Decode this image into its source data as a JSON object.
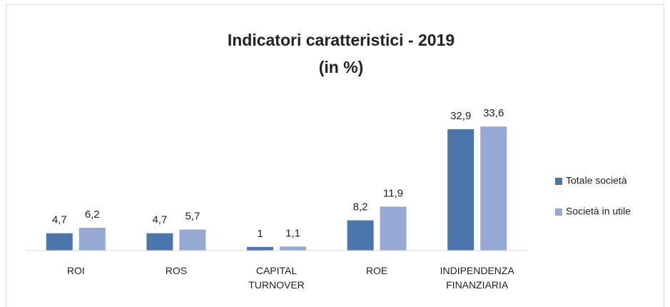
{
  "chart_data": {
    "type": "bar",
    "title": "Indicatori caratteristici - 2019",
    "subtitle": "(in %)",
    "categories": [
      "ROI",
      "ROS",
      "CAPITAL TURNOVER",
      "ROE",
      "INDIPENDENZA FINANZIARIA"
    ],
    "series": [
      {
        "name": "Totale società",
        "color": "#4a76ab",
        "values": [
          4.7,
          4.7,
          1,
          8.2,
          32.9
        ],
        "value_labels": [
          "4,7",
          "4,7",
          "1",
          "8,2",
          "32,9"
        ]
      },
      {
        "name": "Società in utile",
        "color": "#95a9d4",
        "values": [
          6.2,
          5.7,
          1.1,
          11.9,
          33.6
        ],
        "value_labels": [
          "6,2",
          "5,7",
          "1,1",
          "11,9",
          "33,6"
        ]
      }
    ],
    "ylim": [
      0,
      35
    ],
    "legend": "right"
  }
}
